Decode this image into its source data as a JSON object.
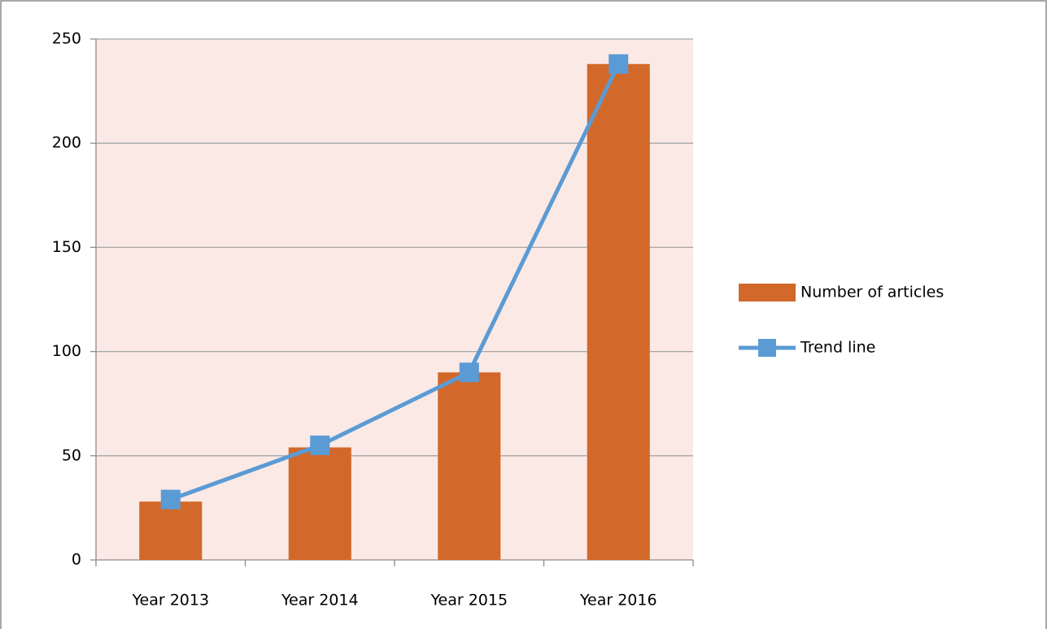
{
  "chart_data": {
    "type": "bar",
    "categories": [
      "Year 2013",
      "Year 2014",
      "Year 2015",
      "Year 2016"
    ],
    "series": [
      {
        "name": "Number of articles",
        "type": "bar",
        "color": "#d2692a",
        "values": [
          28,
          54,
          90,
          238
        ]
      },
      {
        "name": "Trend line",
        "type": "line",
        "color": "#5b9bd5",
        "values": [
          29,
          55,
          90,
          238
        ]
      }
    ],
    "ylim": [
      0,
      250
    ],
    "yticks": [
      0,
      50,
      100,
      150,
      200,
      250
    ],
    "grid": true,
    "plot_background": "#fbe9e5",
    "legend": "right"
  }
}
